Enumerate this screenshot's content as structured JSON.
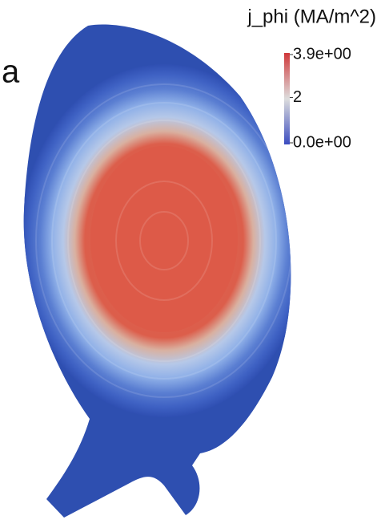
{
  "panel_label": "a",
  "colorbar": {
    "title": "j_phi (MA/m^2)",
    "ticks": [
      {
        "value": 3.9,
        "label": "3.9e+00"
      },
      {
        "value": 2,
        "label": "2"
      },
      {
        "value": 0,
        "label": "0.0e+00"
      }
    ]
  }
}
